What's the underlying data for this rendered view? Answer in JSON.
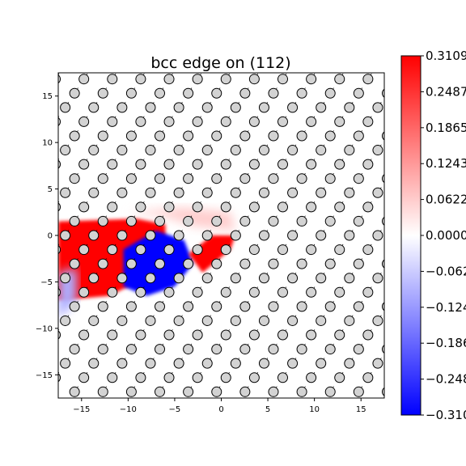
{
  "chart_data": {
    "type": "heatmap",
    "title": "bcc edge on (112)",
    "xlim": [
      -17.5,
      17.5
    ],
    "ylim": [
      -17.5,
      17.5
    ],
    "x_ticks": [
      -15,
      -10,
      -5,
      0,
      5,
      10,
      15
    ],
    "y_ticks": [
      -15,
      -10,
      -5,
      0,
      5,
      10,
      15
    ],
    "x_tick_labels": [
      "−15",
      "−10",
      "−5",
      "0",
      "5",
      "10",
      "15"
    ],
    "y_tick_labels": [
      "−15",
      "−10",
      "−5",
      "0",
      "5",
      "10",
      "15"
    ],
    "colormap": "bwr",
    "colorbar": {
      "range": [
        -0.3109,
        0.3109
      ],
      "ticks": [
        0.3109,
        0.2487,
        0.1865,
        0.1243,
        0.0622,
        0.0,
        -0.0622,
        -0.1243,
        -0.1865,
        -0.2487,
        -0.3109
      ],
      "tick_labels": [
        "0.3109",
        "0.2487",
        "0.1865",
        "0.1243",
        "0.0622",
        "0.0000",
        "−0.0622",
        "−0.1243",
        "−0.1865",
        "−0.2487",
        "−0.3109"
      ]
    },
    "atom_lattice": {
      "spacing_x": 3.05,
      "spacing_y": 1.53,
      "row_offset_step": 1.0,
      "color": "#d3d3d3"
    },
    "regions": [
      {
        "sign": "positive",
        "value": 0.3109,
        "polygon": [
          [
            -17.5,
            1.5
          ],
          [
            -9,
            1.8
          ],
          [
            -6,
            1.2
          ],
          [
            -6,
            -1
          ],
          [
            -9,
            -5
          ],
          [
            -12,
            -6.5
          ],
          [
            -17.5,
            -7
          ]
        ]
      },
      {
        "sign": "negative",
        "value": -0.3109,
        "polygon": [
          [
            -10.5,
            -1.5
          ],
          [
            -7,
            0.5
          ],
          [
            -4,
            -0.5
          ],
          [
            -3,
            -3
          ],
          [
            -5,
            -5.5
          ],
          [
            -8,
            -6.5
          ],
          [
            -10.5,
            -5.5
          ]
        ]
      },
      {
        "sign": "positive",
        "value": 0.3109,
        "polygon": [
          [
            -3.5,
            -2
          ],
          [
            -1,
            0
          ],
          [
            1.5,
            0
          ],
          [
            1,
            -1.5
          ],
          [
            -2,
            -4
          ]
        ]
      },
      {
        "sign": "positive",
        "value": 0.06,
        "polygon": [
          [
            -10,
            2.5
          ],
          [
            -4,
            3
          ],
          [
            1,
            2.5
          ],
          [
            1.5,
            0.5
          ],
          [
            -3,
            1
          ],
          [
            -6,
            2
          ]
        ]
      },
      {
        "sign": "negative",
        "value": -0.1,
        "polygon": [
          [
            -17.5,
            -4
          ],
          [
            -15.5,
            -3.5
          ],
          [
            -15.5,
            -7
          ],
          [
            -17.5,
            -9
          ]
        ]
      }
    ]
  }
}
